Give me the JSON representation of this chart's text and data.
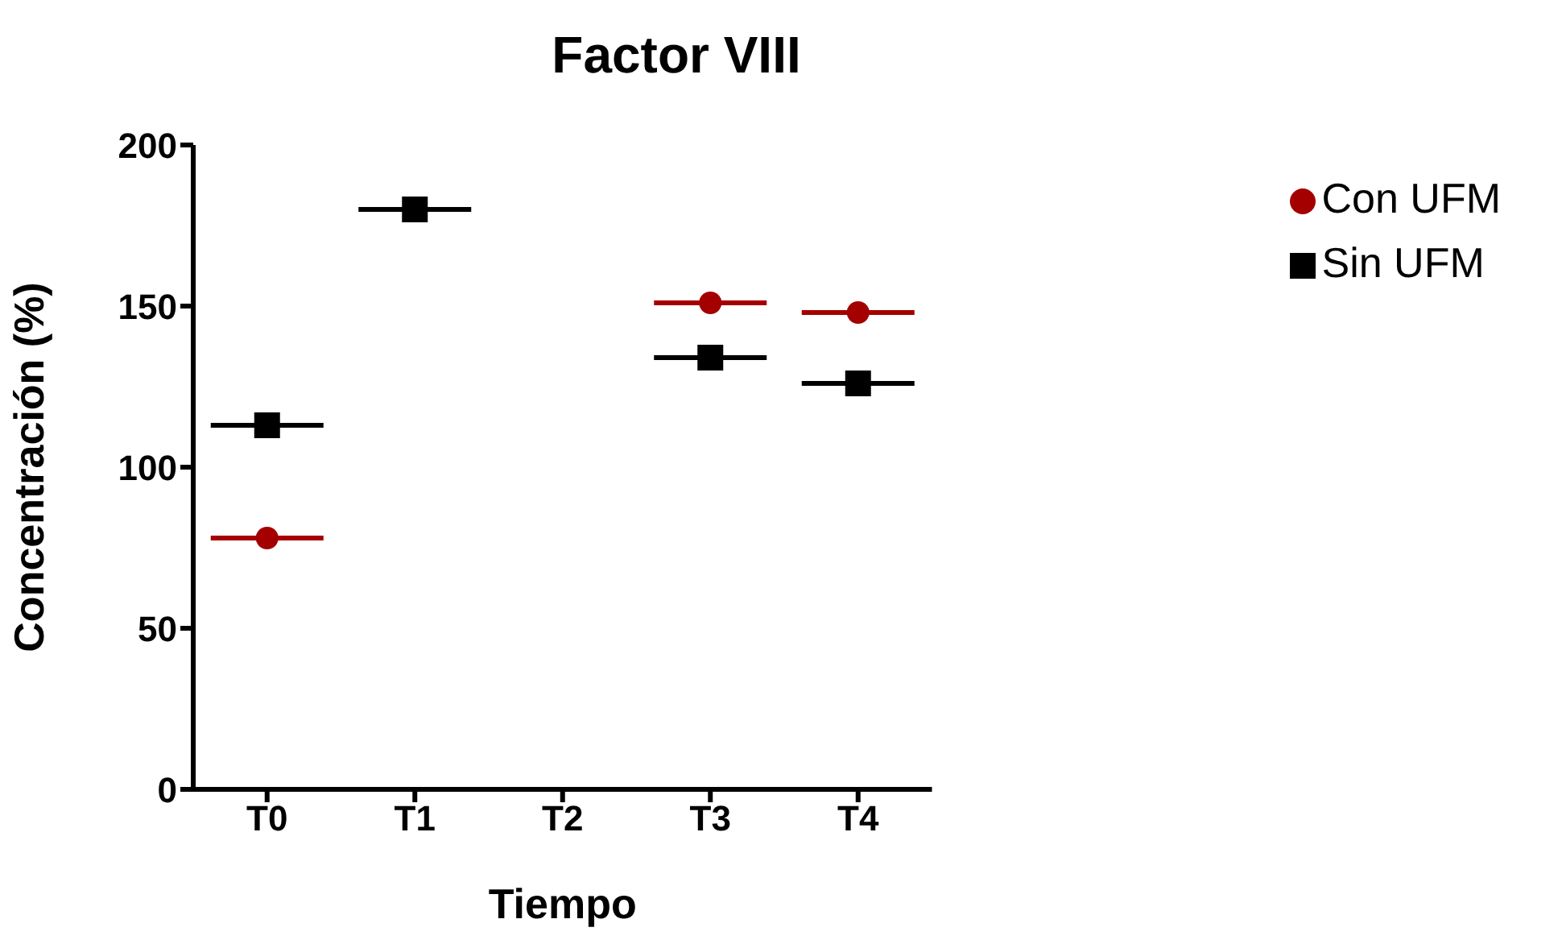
{
  "chart_data": {
    "type": "scatter",
    "title": "Factor VIII",
    "xlabel": "Tiempo",
    "ylabel": "Concentración (%)",
    "categories": [
      "T0",
      "T1",
      "T2",
      "T3",
      "T4"
    ],
    "series": [
      {
        "name": "Con UFM",
        "color": "#a50000",
        "marker": "circle",
        "values": [
          78,
          null,
          null,
          151,
          148
        ]
      },
      {
        "name": "Sin UFM",
        "color": "#000000",
        "marker": "square",
        "values": [
          113,
          180,
          null,
          134,
          126
        ]
      }
    ],
    "ylim": [
      0,
      200
    ],
    "yticks": [
      0,
      50,
      100,
      150,
      200
    ],
    "grid": false,
    "legend": "top right"
  }
}
